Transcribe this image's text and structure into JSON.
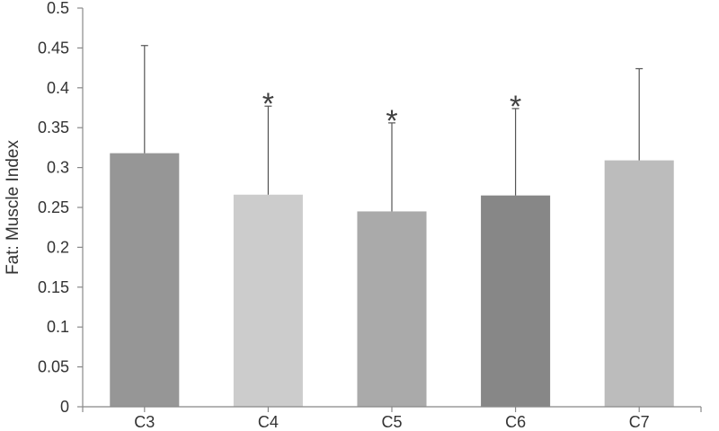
{
  "chart_data": {
    "type": "bar",
    "title": "",
    "xlabel": "",
    "ylabel": "Fat: Muscle Index",
    "ylim": [
      0,
      0.5
    ],
    "yticks": [
      0,
      0.05,
      0.1,
      0.15,
      0.2,
      0.25,
      0.3,
      0.35,
      0.4,
      0.45,
      0.5
    ],
    "ytick_labels": [
      "0",
      "0.05",
      "0.1",
      "0.15",
      "0.2",
      "0.25",
      "0.3",
      "0.35",
      "0.4",
      "0.45",
      "0.5"
    ],
    "categories": [
      "C3",
      "C4",
      "C5",
      "C6",
      "C7"
    ],
    "values": [
      0.318,
      0.266,
      0.245,
      0.265,
      0.309
    ],
    "error_upper": [
      0.453,
      0.377,
      0.356,
      0.374,
      0.424
    ],
    "significance": [
      "",
      "*",
      "*",
      "*",
      ""
    ],
    "bar_colors": [
      "#969696",
      "#cccccc",
      "#aaaaaa",
      "#878787",
      "#bcbcbc"
    ],
    "grid": false,
    "legend": "none"
  }
}
